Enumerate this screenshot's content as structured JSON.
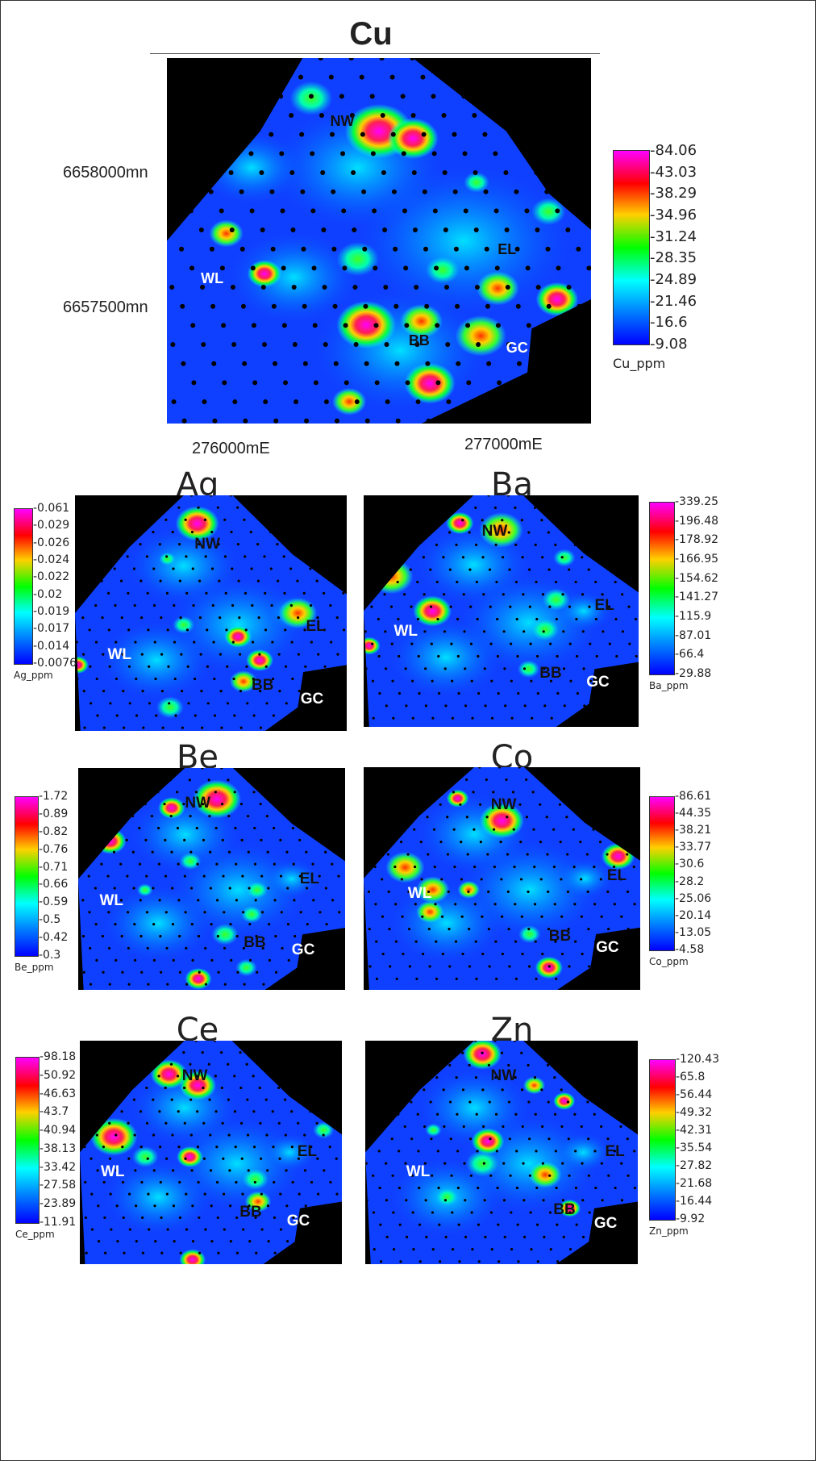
{
  "colorscale": [
    "#ff00ff",
    "#ff0000",
    "#ffd000",
    "#00ff00",
    "#00ffff",
    "#0080ff",
    "#0000ff"
  ],
  "sites": [
    "NW",
    "WL",
    "EL",
    "BB",
    "GC"
  ],
  "main": {
    "title": "Cu",
    "y_labels": [
      "6658000mn",
      "6657500mn"
    ],
    "x_labels": [
      "276000mE",
      "277000mE"
    ],
    "legend": {
      "ticks": [
        "84.06",
        "43.03",
        "38.29",
        "34.96",
        "31.24",
        "28.35",
        "24.89",
        "21.46",
        "16.6",
        "9.08"
      ],
      "name": "Cu_ppm"
    }
  },
  "panels": [
    {
      "id": "ag",
      "title": "Ag",
      "legend": {
        "ticks": [
          "0.061",
          "0.029",
          "0.026",
          "0.024",
          "0.022",
          "0.02",
          "0.019",
          "0.017",
          "0.014",
          "0.0076"
        ],
        "name": "Ag_ppm"
      }
    },
    {
      "id": "ba",
      "title": "Ba",
      "legend": {
        "ticks": [
          "339.25",
          "196.48",
          "178.92",
          "166.95",
          "154.62",
          "141.27",
          "115.9",
          "87.01",
          "66.4",
          "29.88"
        ],
        "name": "Ba_ppm"
      }
    },
    {
      "id": "be",
      "title": "Be",
      "legend": {
        "ticks": [
          "1.72",
          "0.89",
          "0.82",
          "0.76",
          "0.71",
          "0.66",
          "0.59",
          "0.5",
          "0.42",
          "0.3"
        ],
        "name": "Be_ppm"
      }
    },
    {
      "id": "co",
      "title": "Co",
      "legend": {
        "ticks": [
          "86.61",
          "44.35",
          "38.21",
          "33.77",
          "30.6",
          "28.2",
          "25.06",
          "20.14",
          "13.05",
          "4.58"
        ],
        "name": "Co_ppm"
      }
    },
    {
      "id": "ce",
      "title": "Ce",
      "legend": {
        "ticks": [
          "98.18",
          "50.92",
          "46.63",
          "43.7",
          "40.94",
          "38.13",
          "33.42",
          "27.58",
          "23.89",
          "11.91"
        ],
        "name": "Ce_ppm"
      }
    },
    {
      "id": "zn",
      "title": "Zn",
      "legend": {
        "ticks": [
          "120.43",
          "65.8",
          "56.44",
          "49.32",
          "42.31",
          "35.54",
          "27.82",
          "21.68",
          "16.44",
          "9.92"
        ],
        "name": "Zn_ppm"
      }
    }
  ]
}
